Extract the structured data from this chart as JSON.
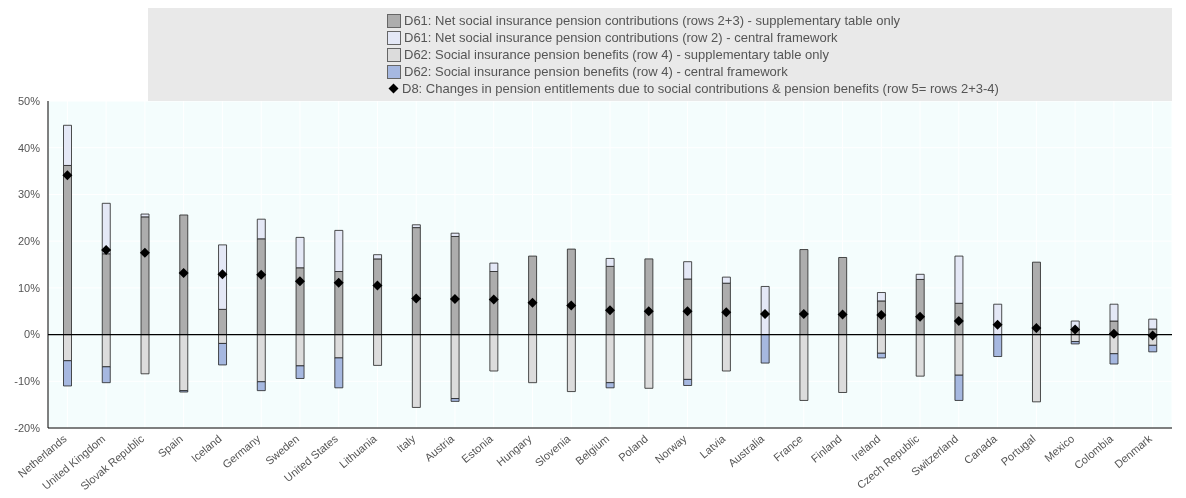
{
  "chart_data": {
    "type": "bar",
    "stacked": true,
    "categories": [
      "Netherlands",
      "United Kingdom",
      "Slovak Republic",
      "Spain",
      "Iceland",
      "Germany",
      "Sweden",
      "United States",
      "Lithuania",
      "Italy",
      "Austria",
      "Estonia",
      "Hungary",
      "Slovenia",
      "Belgium",
      "Poland",
      "Norway",
      "Latvia",
      "Australia",
      "France",
      "Finland",
      "Ireland",
      "Czech Republic",
      "Switzerland",
      "Canada",
      "Portugal",
      "Mexico",
      "Colombia",
      "Denmark"
    ],
    "series": [
      {
        "name": "D61: Net social insurance pension contributions (rows 2+3) - supplementary table only",
        "color": "#adadad",
        "values": [
          36.2,
          17.3,
          25.2,
          25.6,
          5.4,
          20.5,
          14.3,
          13.5,
          16.2,
          22.9,
          21.0,
          13.5,
          16.8,
          18.3,
          14.6,
          16.2,
          11.9,
          11.0,
          0,
          18.2,
          16.5,
          7.2,
          11.8,
          6.7,
          0,
          15.5,
          0.9,
          2.9,
          1.2
        ]
      },
      {
        "name": "D61: Net social insurance pension contributions (row 2) - central framework",
        "color": "#e4e8f6",
        "values": [
          8.6,
          10.8,
          0.6,
          0,
          13.8,
          4.2,
          6.5,
          8.8,
          0.9,
          0.6,
          0.7,
          1.8,
          0,
          0,
          1.7,
          0,
          3.7,
          1.3,
          10.3,
          0,
          0,
          1.8,
          1.1,
          10.1,
          6.5,
          0,
          2.0,
          3.6,
          2.1
        ]
      },
      {
        "name": "D62: Social insurance pension benefits (row 4) - supplementary table only",
        "color": "#dcdcdc",
        "values": [
          -5.6,
          -6.9,
          -8.4,
          -12.0,
          -1.9,
          -10.1,
          -6.7,
          -5.0,
          -6.6,
          -15.6,
          -13.7,
          -7.8,
          -10.3,
          -12.2,
          -10.3,
          -11.5,
          -9.6,
          -7.8,
          0,
          -14.1,
          -12.4,
          -4.0,
          -8.9,
          -8.7,
          0,
          -14.4,
          -1.5,
          -4.1,
          -2.3
        ]
      },
      {
        "name": "D62: Social insurance pension benefits (row 4) - central framework",
        "color": "#a6b8e0",
        "values": [
          -5.4,
          -3.4,
          0,
          -0.3,
          -4.6,
          -1.9,
          -2.7,
          -6.4,
          0,
          0,
          -0.6,
          0,
          0,
          0,
          -1.1,
          0,
          -1.3,
          0,
          -6.1,
          0,
          0,
          -1.0,
          0,
          -5.4,
          -4.7,
          0,
          -0.5,
          -2.2,
          -1.4
        ]
      },
      {
        "name": "D8: Changes in pension entitlements due to social contributions & pension benefits (row 5= rows 2+3-4)",
        "type": "scatter",
        "marker": "diamond",
        "color": "#000000",
        "values": [
          34.1,
          18.1,
          17.5,
          13.2,
          12.9,
          12.8,
          11.4,
          11.1,
          10.5,
          7.7,
          7.6,
          7.5,
          6.8,
          6.2,
          5.2,
          5.0,
          5.0,
          4.8,
          4.4,
          4.4,
          4.3,
          4.2,
          3.8,
          2.9,
          2.1,
          1.4,
          1.1,
          0.2,
          -0.2
        ]
      }
    ],
    "ylim": [
      -20,
      50
    ],
    "yticks": [
      {
        "value": -20,
        "label": "-20%"
      },
      {
        "value": -10,
        "label": "-10%"
      },
      {
        "value": 0,
        "label": "0%"
      },
      {
        "value": 10,
        "label": "10%"
      },
      {
        "value": 20,
        "label": "20%"
      },
      {
        "value": 30,
        "label": "30%"
      },
      {
        "value": 40,
        "label": "40%"
      },
      {
        "value": 50,
        "label": "50%"
      }
    ],
    "grid": true,
    "legend": "top"
  }
}
